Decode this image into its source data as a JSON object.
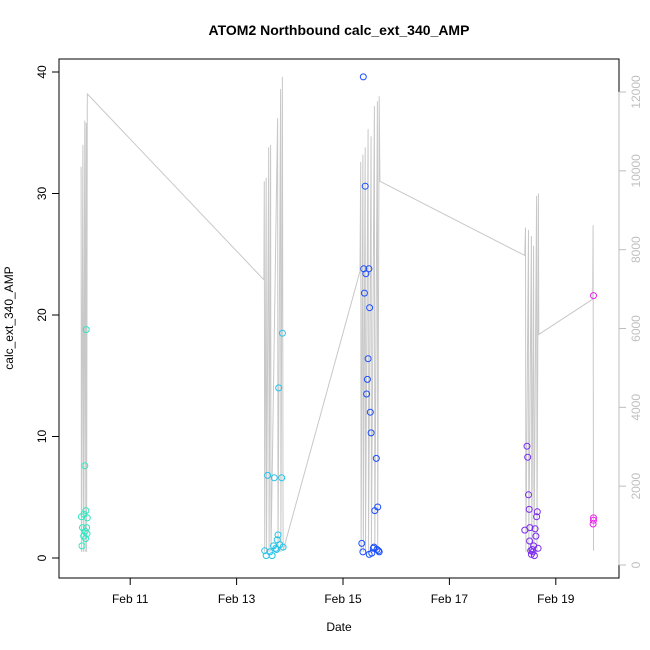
{
  "chart_data": {
    "type": "scatter",
    "title": "ATOM2 Northbound calc_ext_340_AMP",
    "xlabel": "Date",
    "ylabel": "calc_ext_340_AMP",
    "xlim": [
      "2024-02-10 00:00",
      "2024-02-20 00:00"
    ],
    "ylim": [
      0,
      40
    ],
    "y_ticks": [
      0,
      10,
      20,
      30,
      40
    ],
    "x_ticks": [
      {
        "date": "2024-02-11 00:00",
        "label": "Feb 11"
      },
      {
        "date": "2024-02-13 00:00",
        "label": "Feb 13"
      },
      {
        "date": "2024-02-15 00:00",
        "label": "Feb 15"
      },
      {
        "date": "2024-02-17 00:00",
        "label": "Feb 17"
      },
      {
        "date": "2024-02-19 00:00",
        "label": "Feb 19"
      }
    ],
    "y2_range": [
      0,
      12000
    ],
    "y2_ticks": [
      0,
      2000,
      4000,
      6000,
      8000,
      10000,
      12000
    ],
    "grid": false,
    "colors": {
      "line": "#c8c8c8",
      "right_axis": "#bdbdbd",
      "point_palette": [
        "#33e6c0",
        "#22c4e8",
        "#1a4dff",
        "#7a2af0",
        "#e624e6"
      ]
    },
    "points": [
      {
        "x": "2024-02-10 02:00",
        "y": 3.4,
        "c": 0
      },
      {
        "x": "2024-02-10 02:30",
        "y": 2.5,
        "c": 0
      },
      {
        "x": "2024-02-10 03:00",
        "y": 1.8,
        "c": 0
      },
      {
        "x": "2024-02-10 02:15",
        "y": 1.0,
        "c": 0
      },
      {
        "x": "2024-02-10 03:10",
        "y": 3.6,
        "c": 0
      },
      {
        "x": "2024-02-10 03:40",
        "y": 2.2,
        "c": 0
      },
      {
        "x": "2024-02-10 03:30",
        "y": 7.6,
        "c": 0
      },
      {
        "x": "2024-02-10 04:00",
        "y": 3.9,
        "c": 0
      },
      {
        "x": "2024-02-10 04:20",
        "y": 2.5,
        "c": 0
      },
      {
        "x": "2024-02-10 04:40",
        "y": 3.3,
        "c": 0
      },
      {
        "x": "2024-02-10 04:10",
        "y": 18.8,
        "c": 0
      },
      {
        "x": "2024-02-10 03:50",
        "y": 1.6,
        "c": 0
      },
      {
        "x": "2024-02-10 04:30",
        "y": 2.0,
        "c": 0
      },
      {
        "x": "2024-02-13 12:40",
        "y": 0.6,
        "c": 1
      },
      {
        "x": "2024-02-13 13:20",
        "y": 0.2,
        "c": 1
      },
      {
        "x": "2024-02-13 14:00",
        "y": 6.8,
        "c": 1
      },
      {
        "x": "2024-02-13 15:00",
        "y": 0.5,
        "c": 1
      },
      {
        "x": "2024-02-13 16:00",
        "y": 0.2,
        "c": 1
      },
      {
        "x": "2024-02-13 17:00",
        "y": 6.6,
        "c": 1
      },
      {
        "x": "2024-02-13 17:40",
        "y": 0.8,
        "c": 1
      },
      {
        "x": "2024-02-13 18:20",
        "y": 1.5,
        "c": 1
      },
      {
        "x": "2024-02-13 18:40",
        "y": 1.9,
        "c": 1
      },
      {
        "x": "2024-02-13 19:00",
        "y": 14.0,
        "c": 1
      },
      {
        "x": "2024-02-13 19:30",
        "y": 1.1,
        "c": 1
      },
      {
        "x": "2024-02-13 20:20",
        "y": 6.6,
        "c": 1
      },
      {
        "x": "2024-02-13 20:40",
        "y": 18.5,
        "c": 1
      },
      {
        "x": "2024-02-13 21:00",
        "y": 0.9,
        "c": 1
      },
      {
        "x": "2024-02-13 16:40",
        "y": 1.0,
        "c": 1
      },
      {
        "x": "2024-02-13 18:00",
        "y": 0.7,
        "c": 1
      },
      {
        "x": "2024-02-15 09:10",
        "y": 39.6,
        "c": 2
      },
      {
        "x": "2024-02-15 08:30",
        "y": 1.2,
        "c": 2
      },
      {
        "x": "2024-02-15 09:00",
        "y": 0.5,
        "c": 2
      },
      {
        "x": "2024-02-15 09:20",
        "y": 23.8,
        "c": 2
      },
      {
        "x": "2024-02-15 09:40",
        "y": 21.8,
        "c": 2
      },
      {
        "x": "2024-02-15 10:00",
        "y": 30.6,
        "c": 2
      },
      {
        "x": "2024-02-15 10:20",
        "y": 23.4,
        "c": 2
      },
      {
        "x": "2024-02-15 10:40",
        "y": 13.5,
        "c": 2
      },
      {
        "x": "2024-02-15 11:00",
        "y": 14.7,
        "c": 2
      },
      {
        "x": "2024-02-15 11:20",
        "y": 16.4,
        "c": 2
      },
      {
        "x": "2024-02-15 11:40",
        "y": 23.8,
        "c": 2
      },
      {
        "x": "2024-02-15 12:00",
        "y": 20.6,
        "c": 2
      },
      {
        "x": "2024-02-15 12:20",
        "y": 12.0,
        "c": 2
      },
      {
        "x": "2024-02-15 12:40",
        "y": 10.3,
        "c": 2
      },
      {
        "x": "2024-02-15 13:00",
        "y": 0.4,
        "c": 2
      },
      {
        "x": "2024-02-15 13:40",
        "y": 0.8,
        "c": 2
      },
      {
        "x": "2024-02-15 14:20",
        "y": 3.9,
        "c": 2
      },
      {
        "x": "2024-02-15 15:00",
        "y": 8.2,
        "c": 2
      },
      {
        "x": "2024-02-15 15:40",
        "y": 4.2,
        "c": 2
      },
      {
        "x": "2024-02-15 16:00",
        "y": 0.6,
        "c": 2
      },
      {
        "x": "2024-02-15 16:20",
        "y": 0.5,
        "c": 2
      },
      {
        "x": "2024-02-15 14:00",
        "y": 0.9,
        "c": 2
      },
      {
        "x": "2024-02-15 15:20",
        "y": 0.7,
        "c": 2
      },
      {
        "x": "2024-02-15 11:50",
        "y": 0.3,
        "c": 2
      },
      {
        "x": "2024-02-18 10:00",
        "y": 2.3,
        "c": 3
      },
      {
        "x": "2024-02-18 11:00",
        "y": 9.2,
        "c": 3
      },
      {
        "x": "2024-02-18 11:20",
        "y": 8.3,
        "c": 3
      },
      {
        "x": "2024-02-18 11:40",
        "y": 5.2,
        "c": 3
      },
      {
        "x": "2024-02-18 12:00",
        "y": 4.0,
        "c": 3
      },
      {
        "x": "2024-02-18 12:20",
        "y": 2.5,
        "c": 3
      },
      {
        "x": "2024-02-18 12:40",
        "y": 0.6,
        "c": 3
      },
      {
        "x": "2024-02-18 13:00",
        "y": 0.3,
        "c": 3
      },
      {
        "x": "2024-02-18 13:40",
        "y": 0.5,
        "c": 3
      },
      {
        "x": "2024-02-18 14:20",
        "y": 0.2,
        "c": 3
      },
      {
        "x": "2024-02-18 14:40",
        "y": 2.4,
        "c": 3
      },
      {
        "x": "2024-02-18 15:00",
        "y": 1.8,
        "c": 3
      },
      {
        "x": "2024-02-18 15:20",
        "y": 3.4,
        "c": 3
      },
      {
        "x": "2024-02-18 15:40",
        "y": 3.8,
        "c": 3
      },
      {
        "x": "2024-02-18 16:00",
        "y": 0.8,
        "c": 3
      },
      {
        "x": "2024-02-18 12:10",
        "y": 1.4,
        "c": 3
      },
      {
        "x": "2024-02-18 13:20",
        "y": 0.7,
        "c": 3
      },
      {
        "x": "2024-02-18 14:00",
        "y": 1.0,
        "c": 3
      },
      {
        "x": "2024-02-19 17:00",
        "y": 21.6,
        "c": 4
      },
      {
        "x": "2024-02-19 17:00",
        "y": 3.3,
        "c": 4
      },
      {
        "x": "2024-02-19 17:00",
        "y": 3.1,
        "c": 4
      },
      {
        "x": "2024-02-19 16:50",
        "y": 2.8,
        "c": 4
      }
    ],
    "line_series": [
      {
        "x": "2024-02-10 01:50",
        "y": 32.2
      },
      {
        "x": "2024-02-10 02:00",
        "y": 0.5
      },
      {
        "x": "2024-02-10 02:40",
        "y": 34.0
      },
      {
        "x": "2024-02-10 02:50",
        "y": 0.5
      },
      {
        "x": "2024-02-10 03:30",
        "y": 36.0
      },
      {
        "x": "2024-02-10 03:40",
        "y": 0.5
      },
      {
        "x": "2024-02-10 04:10",
        "y": 35.8
      },
      {
        "x": "2024-02-10 04:20",
        "y": 0.5
      },
      {
        "x": "2024-02-10 04:40",
        "y": 38.2
      },
      {
        "x": "2024-02-13 12:20",
        "y": 22.9
      },
      {
        "x": "2024-02-13 12:30",
        "y": 31.0
      },
      {
        "x": "2024-02-13 12:40",
        "y": 0.5
      },
      {
        "x": "2024-02-13 13:20",
        "y": 31.3
      },
      {
        "x": "2024-02-13 13:30",
        "y": 0.5
      },
      {
        "x": "2024-02-13 14:30",
        "y": 33.8
      },
      {
        "x": "2024-02-13 14:40",
        "y": 0.5
      },
      {
        "x": "2024-02-13 15:20",
        "y": 34.0
      },
      {
        "x": "2024-02-13 15:30",
        "y": 0.5
      },
      {
        "x": "2024-02-13 18:30",
        "y": 36.2
      },
      {
        "x": "2024-02-13 18:40",
        "y": 0.5
      },
      {
        "x": "2024-02-13 19:50",
        "y": 38.6
      },
      {
        "x": "2024-02-13 20:00",
        "y": 0.5
      },
      {
        "x": "2024-02-13 20:40",
        "y": 39.6
      },
      {
        "x": "2024-02-13 21:00",
        "y": 0.6
      },
      {
        "x": "2024-02-15 07:40",
        "y": 23.6
      },
      {
        "x": "2024-02-15 08:00",
        "y": 32.6
      },
      {
        "x": "2024-02-15 08:10",
        "y": 0.5
      },
      {
        "x": "2024-02-15 09:00",
        "y": 33.2
      },
      {
        "x": "2024-02-15 09:10",
        "y": 0.5
      },
      {
        "x": "2024-02-15 10:00",
        "y": 33.8
      },
      {
        "x": "2024-02-15 10:10",
        "y": 0.5
      },
      {
        "x": "2024-02-15 11:20",
        "y": 35.3
      },
      {
        "x": "2024-02-15 11:30",
        "y": 0.5
      },
      {
        "x": "2024-02-15 12:40",
        "y": 34.7
      },
      {
        "x": "2024-02-15 12:50",
        "y": 0.5
      },
      {
        "x": "2024-02-15 14:10",
        "y": 37.2
      },
      {
        "x": "2024-02-15 14:20",
        "y": 0.5
      },
      {
        "x": "2024-02-15 15:30",
        "y": 37.6
      },
      {
        "x": "2024-02-15 15:40",
        "y": 0.5
      },
      {
        "x": "2024-02-15 16:20",
        "y": 38.0
      },
      {
        "x": "2024-02-15 16:40",
        "y": 31.0
      },
      {
        "x": "2024-02-18 10:00",
        "y": 24.9
      },
      {
        "x": "2024-02-18 10:20",
        "y": 27.2
      },
      {
        "x": "2024-02-18 10:30",
        "y": 0.5
      },
      {
        "x": "2024-02-18 11:40",
        "y": 27.0
      },
      {
        "x": "2024-02-18 11:50",
        "y": 0.5
      },
      {
        "x": "2024-02-18 13:00",
        "y": 26.5
      },
      {
        "x": "2024-02-18 13:10",
        "y": 0.5
      },
      {
        "x": "2024-02-18 14:00",
        "y": 25.7
      },
      {
        "x": "2024-02-18 14:10",
        "y": 0.5
      },
      {
        "x": "2024-02-18 15:20",
        "y": 29.8
      },
      {
        "x": "2024-02-18 15:30",
        "y": 0.5
      },
      {
        "x": "2024-02-18 16:10",
        "y": 30.0
      },
      {
        "x": "2024-02-18 16:20",
        "y": 18.4
      },
      {
        "x": "2024-02-19 16:40",
        "y": 21.3
      },
      {
        "x": "2024-02-19 16:50",
        "y": 27.4
      },
      {
        "x": "2024-02-19 17:00",
        "y": 0.6
      }
    ]
  }
}
